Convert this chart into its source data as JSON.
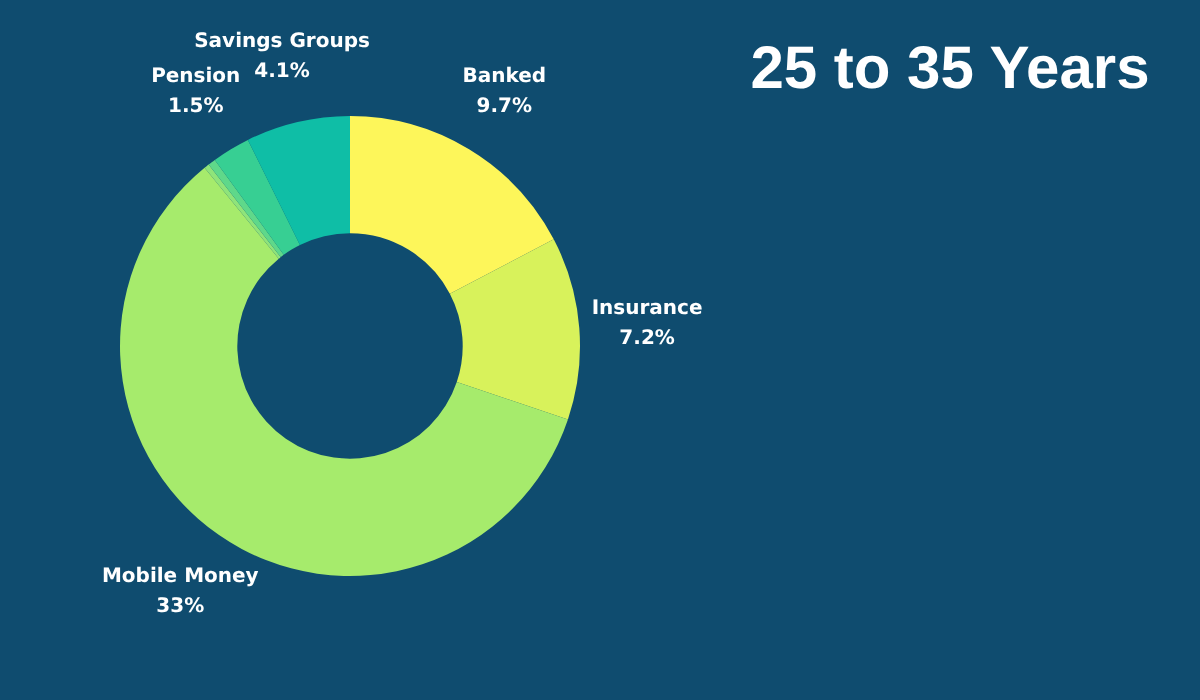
{
  "chart_data": {
    "type": "donut",
    "title": "25 to 35 Years",
    "categories": [
      "Banked",
      "Insurance",
      "Mobile Money",
      null,
      null,
      "Pension",
      "Savings Groups"
    ],
    "values": [
      9.7,
      7.2,
      33,
      0.2,
      0.3,
      1.5,
      4.1
    ],
    "value_labels": [
      "9.7%",
      "7.2%",
      "33%",
      null,
      null,
      "1.5%",
      "4.1%"
    ],
    "colors": [
      "#fdf65a",
      "#d8f25b",
      "#a6eb6c",
      "#8fe47a",
      "#5fd88a",
      "#37cf93",
      "#0fbea6"
    ],
    "legend": false
  }
}
